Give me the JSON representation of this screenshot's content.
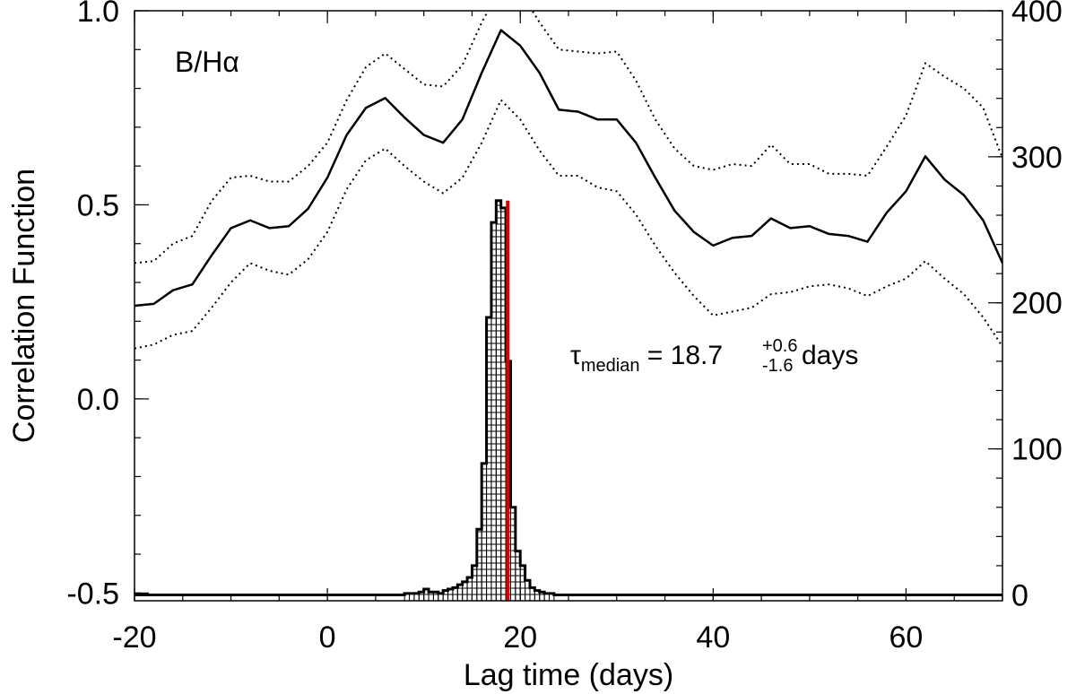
{
  "chart_data": {
    "type": "line",
    "xlabel": "Lag time  (days)",
    "ylabel": "Correlation Function",
    "xlim": [
      -20,
      70
    ],
    "ylim": [
      -0.52,
      1.0
    ],
    "y2lim": [
      -4,
      400
    ],
    "x_ticks": [
      -20,
      0,
      20,
      40,
      60
    ],
    "x_tick_labels": [
      "-20",
      "0",
      "20",
      "40",
      "60"
    ],
    "y_ticks": [
      -0.5,
      0.0,
      0.5,
      1.0
    ],
    "y_tick_labels": [
      "-0.5",
      "0.0",
      "0.5",
      "1.0"
    ],
    "y2_ticks": [
      0,
      100,
      200,
      300,
      400
    ],
    "y2_tick_labels": [
      "0",
      "100",
      "200",
      "300",
      "400"
    ],
    "panel_label": {
      "base": "B/H",
      "greek": "α"
    },
    "annotation": {
      "symbol": "τ",
      "sub": "median",
      "eq": " =  ",
      "value": "18.7",
      "upper": "+0.6",
      "lower": "-1.6",
      "unit": " days"
    },
    "median_lag": 18.7,
    "series": [
      {
        "style": "solid",
        "x": [
          -20,
          -18,
          -16,
          -14,
          -12,
          -10,
          -8,
          -6,
          -4,
          -2,
          0,
          2,
          4,
          6,
          8,
          10,
          12,
          14,
          16,
          18,
          20,
          22,
          24,
          26,
          28,
          30,
          32,
          34,
          36,
          38,
          40,
          42,
          44,
          46,
          48,
          50,
          52,
          54,
          56,
          58,
          60,
          62,
          64,
          66,
          68,
          70
        ],
        "y": [
          0.24,
          0.245,
          0.28,
          0.295,
          0.37,
          0.44,
          0.46,
          0.44,
          0.445,
          0.49,
          0.57,
          0.68,
          0.75,
          0.775,
          0.725,
          0.68,
          0.66,
          0.72,
          0.84,
          0.95,
          0.91,
          0.84,
          0.745,
          0.74,
          0.72,
          0.72,
          0.66,
          0.57,
          0.485,
          0.43,
          0.395,
          0.415,
          0.42,
          0.465,
          0.44,
          0.445,
          0.425,
          0.42,
          0.405,
          0.48,
          0.535,
          0.625,
          0.565,
          0.525,
          0.46,
          0.35
        ]
      },
      {
        "style": "dotted",
        "x": [
          -20,
          -18,
          -16,
          -14,
          -12,
          -10,
          -8,
          -6,
          -4,
          -2,
          0,
          2,
          4,
          6,
          8,
          10,
          12,
          14,
          16,
          18,
          20,
          22,
          24,
          26,
          28,
          30,
          32,
          34,
          36,
          38,
          40,
          42,
          44,
          46,
          48,
          50,
          52,
          54,
          56,
          58,
          60,
          62,
          64,
          66,
          68,
          70
        ],
        "y": [
          0.35,
          0.355,
          0.4,
          0.42,
          0.51,
          0.57,
          0.575,
          0.56,
          0.56,
          0.6,
          0.66,
          0.77,
          0.855,
          0.89,
          0.85,
          0.81,
          0.805,
          0.86,
          0.97,
          1.06,
          1.05,
          0.97,
          0.9,
          0.895,
          0.89,
          0.895,
          0.82,
          0.72,
          0.645,
          0.6,
          0.59,
          0.605,
          0.6,
          0.655,
          0.605,
          0.605,
          0.58,
          0.58,
          0.575,
          0.65,
          0.73,
          0.865,
          0.83,
          0.8,
          0.75,
          0.62
        ]
      },
      {
        "style": "dotted",
        "x": [
          -20,
          -18,
          -16,
          -14,
          -12,
          -10,
          -8,
          -6,
          -4,
          -2,
          0,
          2,
          4,
          6,
          8,
          10,
          12,
          14,
          16,
          18,
          20,
          22,
          24,
          26,
          28,
          30,
          32,
          34,
          36,
          38,
          40,
          42,
          44,
          46,
          48,
          50,
          52,
          54,
          56,
          58,
          60,
          62,
          64,
          66,
          68,
          70
        ],
        "y": [
          0.13,
          0.14,
          0.165,
          0.175,
          0.235,
          0.3,
          0.35,
          0.33,
          0.32,
          0.36,
          0.43,
          0.54,
          0.615,
          0.645,
          0.6,
          0.56,
          0.53,
          0.57,
          0.66,
          0.77,
          0.72,
          0.64,
          0.575,
          0.575,
          0.545,
          0.535,
          0.475,
          0.395,
          0.325,
          0.265,
          0.215,
          0.225,
          0.235,
          0.27,
          0.275,
          0.29,
          0.295,
          0.285,
          0.265,
          0.29,
          0.31,
          0.355,
          0.31,
          0.27,
          0.21,
          0.135
        ]
      }
    ],
    "histogram": {
      "axis": "right",
      "bin_width": 0.5,
      "bin_starts": [
        8,
        8.5,
        9,
        9.5,
        10,
        10.5,
        11,
        11.5,
        12,
        12.5,
        13,
        13.5,
        14,
        14.5,
        15,
        15.5,
        16,
        16.5,
        17,
        17.5,
        18,
        18.5,
        19,
        19.5,
        20,
        20.5,
        21,
        21.5,
        22,
        22.5,
        23
      ],
      "counts": [
        1,
        1,
        1,
        2,
        4,
        2,
        2,
        1,
        3,
        4,
        5,
        7,
        9,
        12,
        20,
        45,
        90,
        190,
        255,
        270,
        265,
        160,
        60,
        30,
        20,
        10,
        5,
        3,
        2,
        1,
        1
      ]
    }
  }
}
